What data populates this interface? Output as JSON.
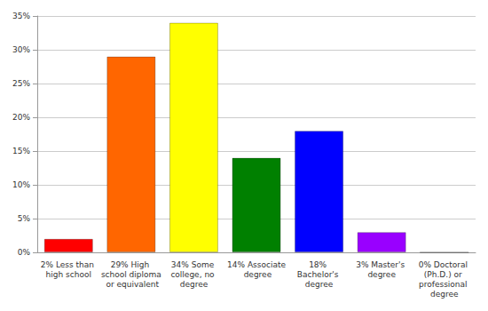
{
  "chart_data": {
    "type": "bar",
    "categories": [
      "2% Less than high school",
      "29% High school diploma or equivalent",
      "34% Some college, no degree",
      "14% Associate degree",
      "18% Bachelor's degree",
      "3% Master's degree",
      "0% Doctoral (Ph.D.) or professional degree"
    ],
    "values": [
      2,
      29,
      34,
      14,
      18,
      3,
      0
    ],
    "colors": [
      "#ff0000",
      "#ff6600",
      "#ffff00",
      "#008000",
      "#0000ff",
      "#9900ff",
      "#ff00ff"
    ],
    "ylim": [
      0,
      35
    ],
    "yticks": [
      {
        "value": 0,
        "label": "0%"
      },
      {
        "value": 5,
        "label": "5%"
      },
      {
        "value": 10,
        "label": "10%"
      },
      {
        "value": 15,
        "label": "15%"
      },
      {
        "value": 20,
        "label": "20%"
      },
      {
        "value": 25,
        "label": "25%"
      },
      {
        "value": 30,
        "label": "30%"
      },
      {
        "value": 35,
        "label": "35%"
      }
    ],
    "grid": true
  }
}
